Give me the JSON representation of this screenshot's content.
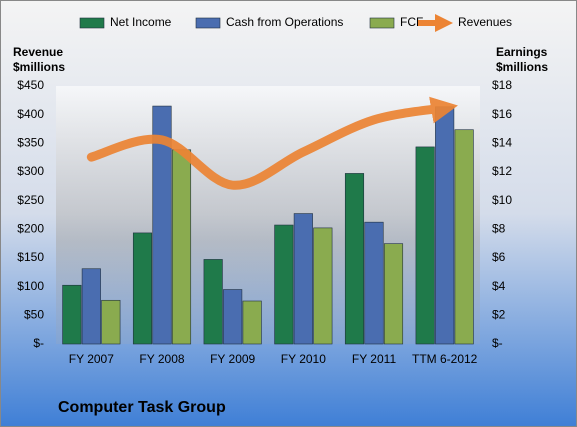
{
  "chart_data": {
    "type": "bar",
    "title": "Computer Task Group",
    "ylabel": "Revenue $millions",
    "y2label": "Earnings $millions",
    "categories": [
      "FY 2007",
      "FY 2008",
      "FY 2009",
      "FY 2010",
      "FY 2011",
      "TTM 6-2012"
    ],
    "series": [
      {
        "name": "Net Income",
        "color": "#1f7a4a",
        "axis": "y2",
        "values": [
          4.1,
          7.75,
          5.9,
          8.3,
          11.9,
          13.75
        ]
      },
      {
        "name": "Cash from Operations",
        "color": "#4a6db0",
        "axis": "y2",
        "values": [
          5.25,
          16.6,
          3.8,
          9.1,
          8.5,
          16.55
        ]
      },
      {
        "name": "FCF",
        "color": "#8aab4f",
        "axis": "y2",
        "values": [
          3.05,
          13.55,
          3.0,
          8.1,
          7.0,
          14.95
        ]
      },
      {
        "name": "Revenues",
        "color": "#ec8434",
        "type": "line",
        "axis": "y",
        "values": [
          326,
          356,
          277,
          335,
          391,
          412
        ]
      }
    ],
    "ylim": [
      0,
      450
    ],
    "yticks": [
      {
        "value": 0,
        "label": "$-"
      },
      {
        "value": 50,
        "label": "$50"
      },
      {
        "value": 100,
        "label": "$100"
      },
      {
        "value": 150,
        "label": "$150"
      },
      {
        "value": 200,
        "label": "$200"
      },
      {
        "value": 250,
        "label": "$250"
      },
      {
        "value": 300,
        "label": "$300"
      },
      {
        "value": 350,
        "label": "$350"
      },
      {
        "value": 400,
        "label": "$400"
      },
      {
        "value": 450,
        "label": "$450"
      }
    ],
    "y2lim": [
      0,
      18
    ],
    "y2ticks": [
      {
        "value": 0,
        "label": "$-"
      },
      {
        "value": 2,
        "label": "$2"
      },
      {
        "value": 4,
        "label": "$4"
      },
      {
        "value": 6,
        "label": "$6"
      },
      {
        "value": 8,
        "label": "$8"
      },
      {
        "value": 10,
        "label": "$10"
      },
      {
        "value": 12,
        "label": "$12"
      },
      {
        "value": 14,
        "label": "$14"
      },
      {
        "value": 16,
        "label": "$16"
      },
      {
        "value": 18,
        "label": "$18"
      }
    ],
    "grid": false,
    "legend": "top"
  }
}
